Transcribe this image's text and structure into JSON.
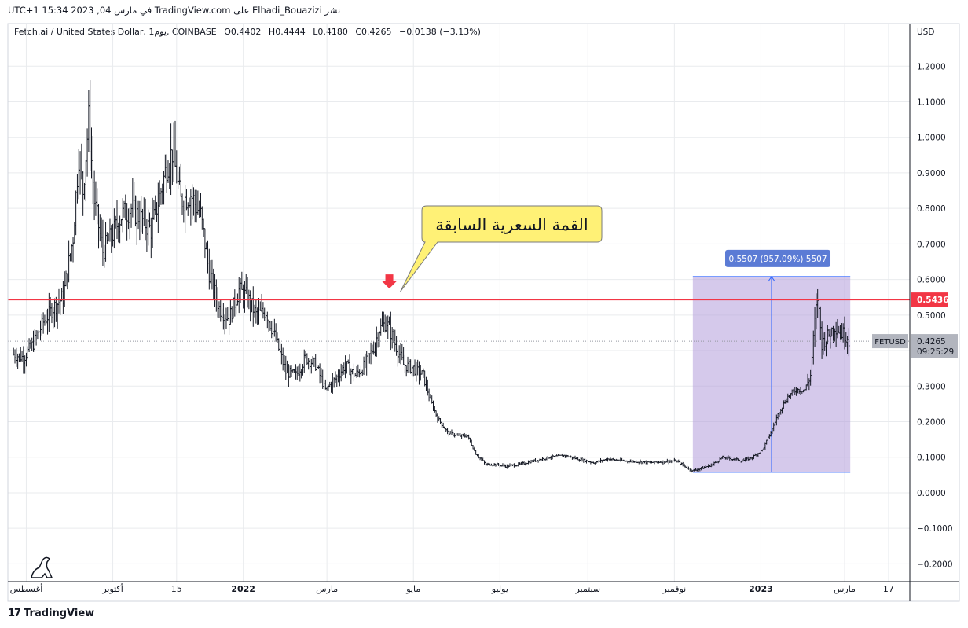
{
  "header": {
    "publish_line": "نشر Elhadi_Bouazizi على TradingView.com في مارس 04, 2023 15:34 UTC+1"
  },
  "legend": {
    "symbol": "Fetch.ai / United States Dollar, 1يوم, COINBASE",
    "o_label": "O",
    "o_value": "0.4402",
    "h_label": "H",
    "h_value": "0.4444",
    "l_label": "L",
    "l_value": "0.4180",
    "c_label": "C",
    "c_value": "0.4265",
    "change": "−0.0138 (−3.13%)"
  },
  "price_axis": {
    "currency": "USD",
    "last_price": "0.4265",
    "countdown": "09:25:29",
    "symbol_tag": "FETUSD",
    "line_price_label": "0.5436"
  },
  "annotations": {
    "callout_text": "القمة السعرية السابقة",
    "range_label": "0.5507 (957.09%) 5507"
  },
  "footer": {
    "brand": "TradingView"
  },
  "colors": {
    "horizontal_line": "#f23645",
    "arrow": "#f23645",
    "callout_bg": "#fff176",
    "range_fill": "#b39ddb",
    "range_line": "#2962ff",
    "range_label_bg": "#5b7bd5",
    "candles": "#131722",
    "grid": "#e9ebee"
  },
  "chart_data": {
    "type": "candlestick",
    "title": "Fetch.ai / United States Dollar, 1يوم, COINBASE",
    "ylabel": "USD",
    "ylim": [
      -0.25,
      1.32
    ],
    "yticks": [
      1.2,
      1.1,
      1.0,
      0.9,
      0.8,
      0.7,
      0.6,
      0.5,
      0.4,
      0.3,
      0.2,
      0.1,
      0.0,
      -0.1,
      -0.2
    ],
    "ytick_labels": [
      "1.2000",
      "1.1000",
      "1.0000",
      "0.9000",
      "0.8000",
      "0.7000",
      "0.6000",
      "0.5000",
      "",
      "0.3000",
      "0.2000",
      "0.1000",
      "0.0000",
      "−0.1000",
      "−0.2000"
    ],
    "x_range": [
      "2021-07-19",
      "2023-04-16"
    ],
    "xticks": [
      {
        "date": "2021-08-01",
        "label": "أغسطس"
      },
      {
        "date": "2021-10-01",
        "label": "أكتوبر"
      },
      {
        "date": "2021-11-15",
        "label": "15"
      },
      {
        "date": "2022-01-01",
        "label": "2022"
      },
      {
        "date": "2022-03-01",
        "label": "مارس"
      },
      {
        "date": "2022-05-01",
        "label": "مايو"
      },
      {
        "date": "2022-07-01",
        "label": "يوليو"
      },
      {
        "date": "2022-09-01",
        "label": "سبتمبر"
      },
      {
        "date": "2022-11-01",
        "label": "نوفمبر"
      },
      {
        "date": "2023-01-01",
        "label": "2023"
      },
      {
        "date": "2023-03-01",
        "label": "مارس"
      },
      {
        "date": "2023-04-01",
        "label": "17"
      }
    ],
    "grid": true,
    "series": [
      {
        "name": "FETUSD",
        "points": [
          [
            "2021-07-23",
            0.39
          ],
          [
            "2021-07-30",
            0.38
          ],
          [
            "2021-08-06",
            0.42
          ],
          [
            "2021-08-13",
            0.48
          ],
          [
            "2021-08-20",
            0.52
          ],
          [
            "2021-08-27",
            0.55
          ],
          [
            "2021-09-03",
            0.72
          ],
          [
            "2021-09-07",
            0.95
          ],
          [
            "2021-09-10",
            0.85
          ],
          [
            "2021-09-14",
            1.05
          ],
          [
            "2021-09-18",
            0.82
          ],
          [
            "2021-09-24",
            0.68
          ],
          [
            "2021-09-30",
            0.72
          ],
          [
            "2021-10-07",
            0.78
          ],
          [
            "2021-10-14",
            0.8
          ],
          [
            "2021-10-21",
            0.77
          ],
          [
            "2021-10-28",
            0.74
          ],
          [
            "2021-11-04",
            0.85
          ],
          [
            "2021-11-08",
            0.92
          ],
          [
            "2021-11-12",
            0.96
          ],
          [
            "2021-11-18",
            0.82
          ],
          [
            "2021-11-25",
            0.84
          ],
          [
            "2021-12-02",
            0.78
          ],
          [
            "2021-12-08",
            0.62
          ],
          [
            "2021-12-15",
            0.52
          ],
          [
            "2021-12-22",
            0.49
          ],
          [
            "2021-12-29",
            0.57
          ],
          [
            "2022-01-04",
            0.55
          ],
          [
            "2022-01-10",
            0.5
          ],
          [
            "2022-01-17",
            0.51
          ],
          [
            "2022-01-24",
            0.43
          ],
          [
            "2022-01-31",
            0.34
          ],
          [
            "2022-02-07",
            0.33
          ],
          [
            "2022-02-14",
            0.38
          ],
          [
            "2022-02-21",
            0.36
          ],
          [
            "2022-02-28",
            0.29
          ],
          [
            "2022-03-07",
            0.32
          ],
          [
            "2022-03-14",
            0.36
          ],
          [
            "2022-03-21",
            0.33
          ],
          [
            "2022-03-28",
            0.36
          ],
          [
            "2022-04-03",
            0.41
          ],
          [
            "2022-04-07",
            0.46
          ],
          [
            "2022-04-12",
            0.48
          ],
          [
            "2022-04-17",
            0.43
          ],
          [
            "2022-04-24",
            0.36
          ],
          [
            "2022-05-01",
            0.35
          ],
          [
            "2022-05-08",
            0.33
          ],
          [
            "2022-05-12",
            0.27
          ],
          [
            "2022-05-18",
            0.21
          ],
          [
            "2022-05-25",
            0.17
          ],
          [
            "2022-06-01",
            0.16
          ],
          [
            "2022-06-08",
            0.16
          ],
          [
            "2022-06-14",
            0.11
          ],
          [
            "2022-06-21",
            0.08
          ],
          [
            "2022-06-28",
            0.08
          ],
          [
            "2022-07-05",
            0.075
          ],
          [
            "2022-07-15",
            0.08
          ],
          [
            "2022-07-25",
            0.09
          ],
          [
            "2022-08-05",
            0.1
          ],
          [
            "2022-08-15",
            0.105
          ],
          [
            "2022-08-25",
            0.095
          ],
          [
            "2022-09-05",
            0.085
          ],
          [
            "2022-09-15",
            0.095
          ],
          [
            "2022-09-25",
            0.09
          ],
          [
            "2022-10-05",
            0.088
          ],
          [
            "2022-10-15",
            0.085
          ],
          [
            "2022-10-25",
            0.088
          ],
          [
            "2022-11-02",
            0.09
          ],
          [
            "2022-11-08",
            0.075
          ],
          [
            "2022-11-14",
            0.062
          ],
          [
            "2022-11-21",
            0.07
          ],
          [
            "2022-11-28",
            0.08
          ],
          [
            "2022-12-05",
            0.1
          ],
          [
            "2022-12-12",
            0.095
          ],
          [
            "2022-12-19",
            0.09
          ],
          [
            "2022-12-26",
            0.1
          ],
          [
            "2023-01-02",
            0.12
          ],
          [
            "2023-01-08",
            0.17
          ],
          [
            "2023-01-14",
            0.23
          ],
          [
            "2023-01-20",
            0.27
          ],
          [
            "2023-01-26",
            0.29
          ],
          [
            "2023-02-01",
            0.29
          ],
          [
            "2023-02-05",
            0.33
          ],
          [
            "2023-02-08",
            0.48
          ],
          [
            "2023-02-10",
            0.55
          ],
          [
            "2023-02-13",
            0.42
          ],
          [
            "2023-02-17",
            0.44
          ],
          [
            "2023-02-22",
            0.47
          ],
          [
            "2023-02-27",
            0.45
          ],
          [
            "2023-03-03",
            0.4402
          ],
          [
            "2023-03-04",
            0.4265
          ]
        ]
      }
    ],
    "horizontal_line": 0.5436,
    "previous_peak": {
      "date": "2022-04-14",
      "value": 0.5436
    },
    "range_measure": {
      "start": "2022-11-14",
      "end": "2023-03-05",
      "low": 0.0576,
      "high": 0.6083
    }
  }
}
